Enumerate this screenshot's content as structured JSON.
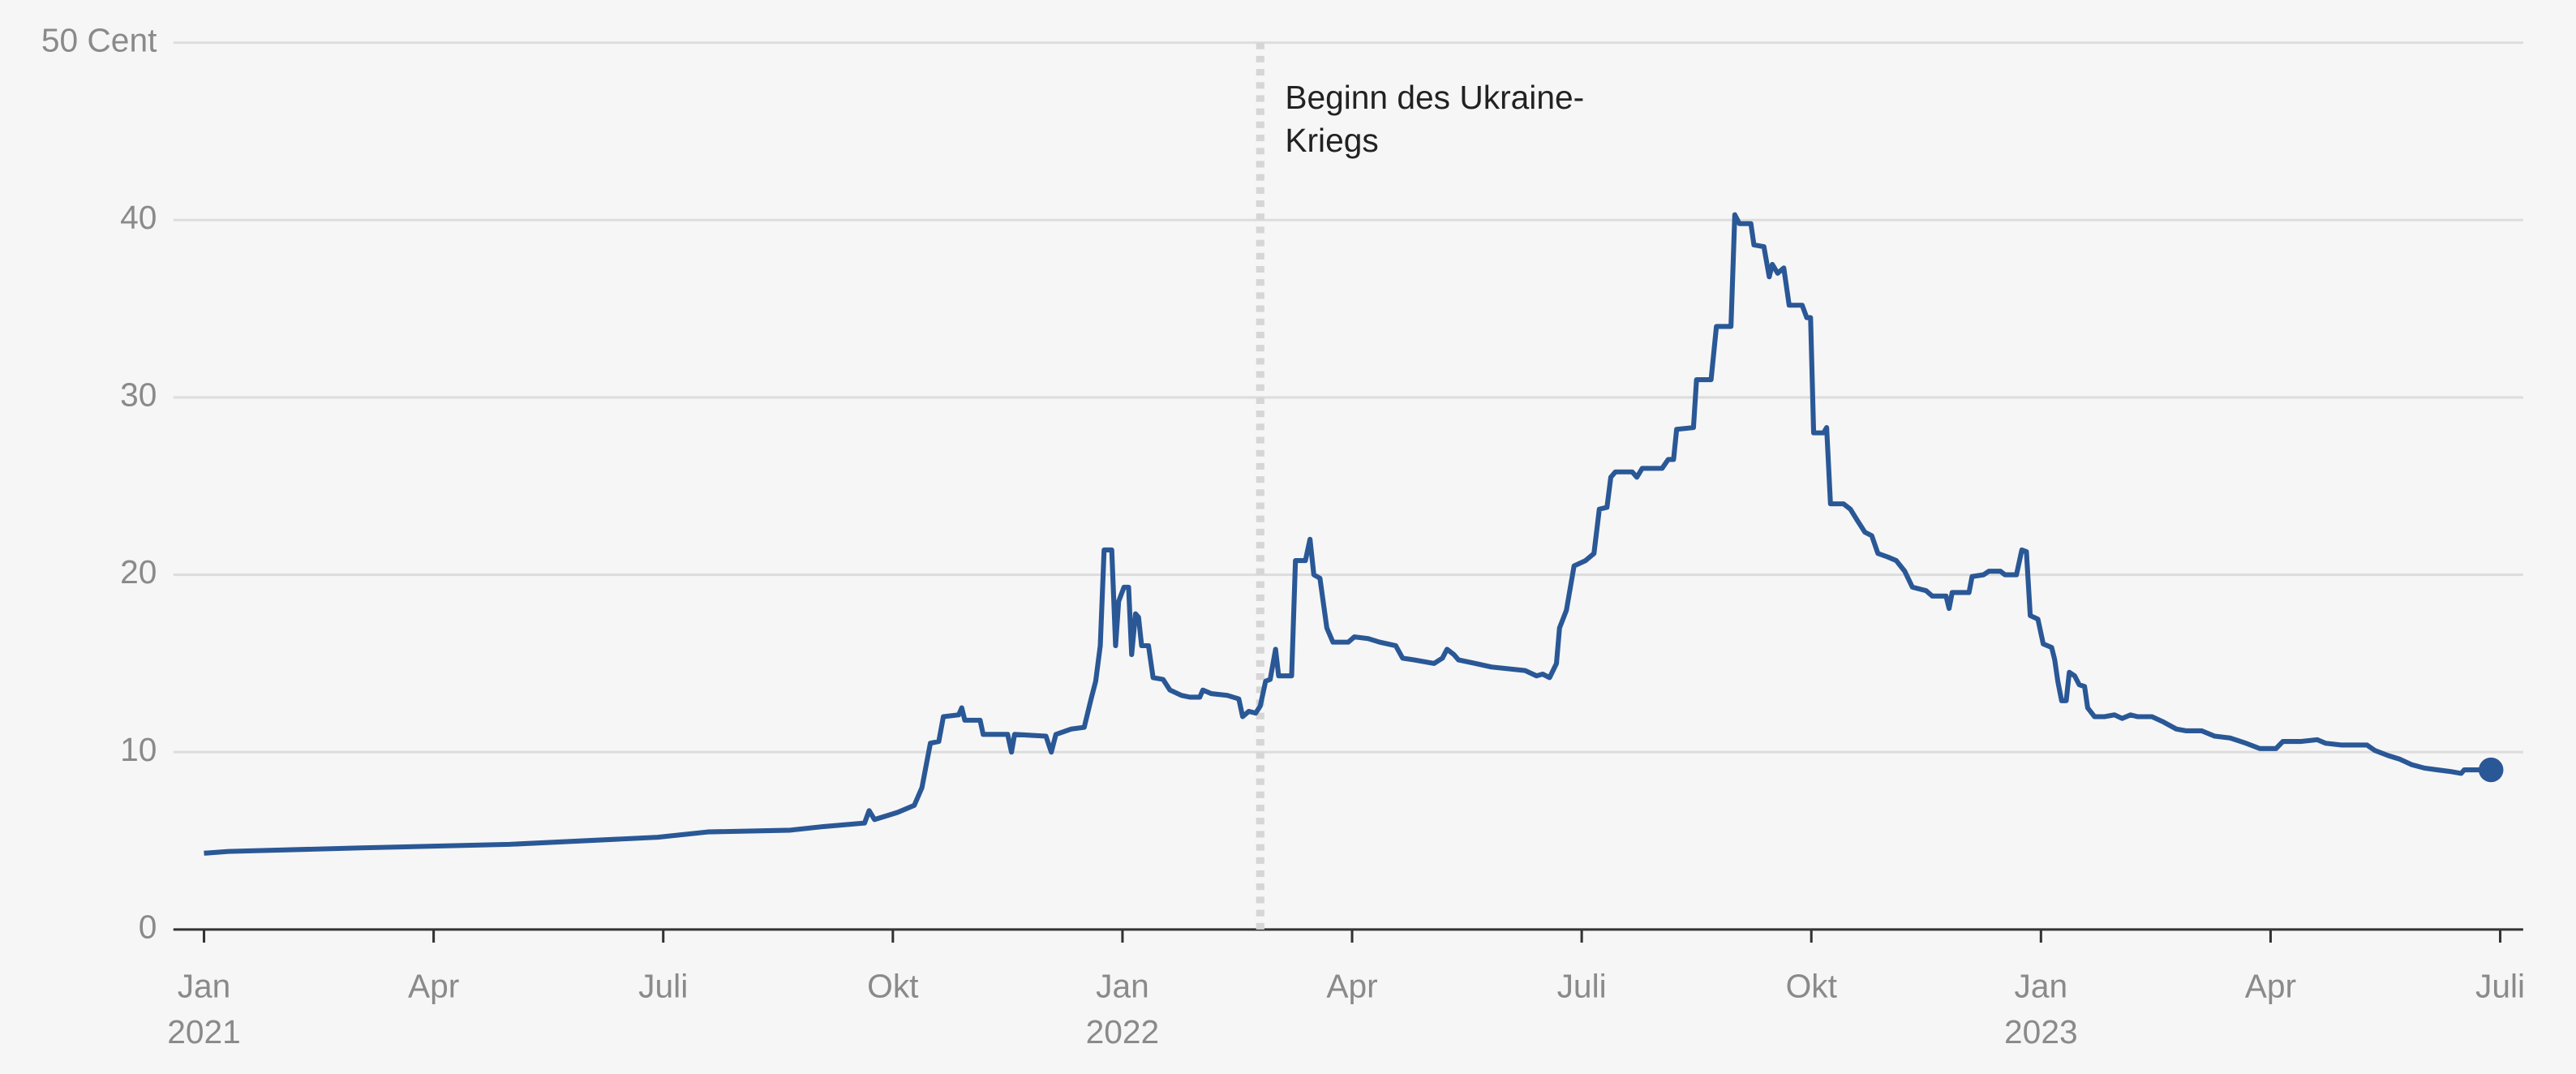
{
  "chart_data": {
    "type": "line",
    "color": "#2a5896",
    "grid": true,
    "xlim": [
      -0.4,
      30.3
    ],
    "ylim": [
      0,
      50
    ],
    "yticks": [
      0,
      10,
      20,
      30,
      40,
      {
        "value": 50,
        "label": "50 Cent"
      }
    ],
    "xticks": [
      {
        "value": 0,
        "label": "Jan"
      },
      {
        "value": 3,
        "label": "Apr"
      },
      {
        "value": 6,
        "label": "Juli"
      },
      {
        "value": 9,
        "label": "Okt"
      },
      {
        "value": 12,
        "label": "Jan"
      },
      {
        "value": 15,
        "label": "Apr"
      },
      {
        "value": 18,
        "label": "Juli"
      },
      {
        "value": 21,
        "label": "Okt"
      },
      {
        "value": 24,
        "label": "Jan"
      },
      {
        "value": 27,
        "label": "Apr"
      },
      {
        "value": 30,
        "label": "Juli"
      }
    ],
    "year_labels": [
      {
        "value": 0,
        "label": "2021"
      },
      {
        "value": 12,
        "label": "2022"
      },
      {
        "value": 24,
        "label": "2023"
      }
    ],
    "annotation": {
      "x": 13.8,
      "lines": [
        "Beginn des Ukraine-",
        "Kriegs"
      ]
    },
    "x": [
      0.0,
      0.32,
      2.05,
      3.99,
      5.93,
      6.58,
      7.66,
      8.09,
      8.63,
      8.69,
      8.76,
      9.06,
      9.28,
      9.38,
      9.49,
      9.6,
      9.66,
      9.86,
      9.9,
      9.94,
      10.14,
      10.18,
      10.5,
      10.55,
      10.59,
      11.0,
      11.07,
      11.13,
      11.33,
      11.5,
      11.59,
      11.65,
      11.71,
      11.76,
      11.86,
      11.91,
      11.95,
      12.02,
      12.08,
      12.12,
      12.17,
      12.21,
      12.25,
      12.34,
      12.4,
      12.53,
      12.62,
      12.77,
      12.88,
      13.01,
      13.05,
      13.16,
      13.37,
      13.52,
      13.57,
      13.65,
      13.74,
      13.8,
      13.87,
      13.93,
      14.0,
      14.04,
      14.21,
      14.26,
      14.39,
      14.45,
      14.5,
      14.58,
      14.67,
      14.75,
      14.95,
      15.03,
      15.21,
      15.36,
      15.57,
      15.66,
      15.81,
      16.07,
      16.18,
      16.24,
      16.33,
      16.39,
      16.61,
      16.82,
      17.26,
      17.41,
      17.49,
      17.58,
      17.67,
      17.71,
      17.8,
      17.9,
      18.05,
      18.16,
      18.23,
      18.33,
      18.38,
      18.44,
      18.66,
      18.72,
      18.79,
      19.05,
      19.13,
      19.2,
      19.24,
      19.46,
      19.5,
      19.69,
      19.76,
      19.95,
      20.0,
      20.06,
      20.21,
      20.25,
      20.38,
      20.45,
      20.49,
      20.56,
      20.64,
      20.71,
      20.88,
      20.94,
      20.99,
      21.03,
      21.16,
      21.2,
      21.25,
      21.42,
      21.51,
      21.61,
      21.7,
      21.79,
      21.87,
      22.0,
      22.11,
      22.22,
      22.32,
      22.5,
      22.58,
      22.76,
      22.8,
      22.84,
      23.06,
      23.1,
      23.25,
      23.32,
      23.47,
      23.53,
      23.68,
      23.75,
      23.81,
      23.86,
      23.96,
      24.03,
      24.14,
      24.18,
      24.22,
      24.27,
      24.33,
      24.37,
      24.44,
      24.5,
      24.57,
      24.61,
      24.7,
      24.83,
      24.96,
      25.06,
      25.17,
      25.26,
      25.45,
      25.6,
      25.77,
      25.9,
      26.1,
      26.27,
      26.47,
      26.68,
      26.86,
      27.07,
      27.16,
      27.39,
      27.61,
      27.72,
      27.93,
      28.26,
      28.36,
      28.54,
      28.69,
      28.84,
      29.01,
      29.18,
      29.36,
      29.49,
      29.53,
      29.66,
      29.88
    ],
    "values": [
      4.3,
      4.4,
      4.6,
      4.8,
      5.2,
      5.5,
      5.6,
      5.8,
      6.0,
      6.7,
      6.2,
      6.6,
      7.0,
      8.0,
      10.5,
      10.6,
      12.0,
      12.1,
      12.5,
      11.8,
      11.8,
      11.0,
      11.0,
      10.0,
      11.0,
      10.9,
      10.0,
      11.0,
      11.3,
      11.4,
      13.0,
      14.0,
      16.0,
      21.4,
      21.4,
      16.0,
      18.5,
      19.3,
      19.3,
      15.5,
      17.8,
      17.6,
      16.0,
      16.0,
      14.2,
      14.1,
      13.5,
      13.2,
      13.1,
      13.1,
      13.5,
      13.3,
      13.2,
      13.0,
      12.0,
      12.3,
      12.2,
      12.6,
      14.0,
      14.1,
      15.8,
      14.3,
      14.3,
      20.8,
      20.8,
      22.0,
      20.0,
      19.8,
      17.0,
      16.2,
      16.2,
      16.5,
      16.4,
      16.2,
      16.0,
      15.3,
      15.2,
      15.0,
      15.3,
      15.8,
      15.5,
      15.2,
      15.0,
      14.8,
      14.6,
      14.3,
      14.4,
      14.2,
      15.0,
      17.0,
      18.0,
      20.5,
      20.8,
      21.2,
      23.7,
      23.8,
      25.5,
      25.8,
      25.8,
      25.5,
      26.0,
      26.0,
      26.5,
      26.5,
      28.2,
      28.3,
      31.0,
      31.0,
      34.0,
      34.0,
      40.3,
      39.8,
      39.8,
      38.6,
      38.5,
      36.8,
      37.5,
      37.0,
      37.3,
      35.2,
      35.2,
      34.5,
      34.5,
      28.0,
      28.0,
      28.3,
      24.0,
      24.0,
      23.7,
      23.0,
      22.4,
      22.2,
      21.2,
      21.0,
      20.8,
      20.2,
      19.3,
      19.1,
      18.8,
      18.8,
      18.1,
      19.0,
      19.0,
      19.9,
      20.0,
      20.2,
      20.2,
      20.0,
      20.0,
      21.4,
      21.3,
      17.7,
      17.5,
      16.1,
      15.9,
      15.2,
      14.0,
      12.9,
      12.9,
      14.5,
      14.3,
      13.8,
      13.7,
      12.5,
      12.0,
      12.0,
      12.1,
      11.9,
      12.1,
      12.0,
      12.0,
      11.7,
      11.3,
      11.2,
      11.2,
      10.9,
      10.8,
      10.5,
      10.2,
      10.2,
      10.6,
      10.6,
      10.7,
      10.5,
      10.4,
      10.4,
      10.1,
      9.8,
      9.6,
      9.3,
      9.1,
      9.0,
      8.9,
      8.8,
      9.0,
      9.0,
      9.0
    ]
  }
}
